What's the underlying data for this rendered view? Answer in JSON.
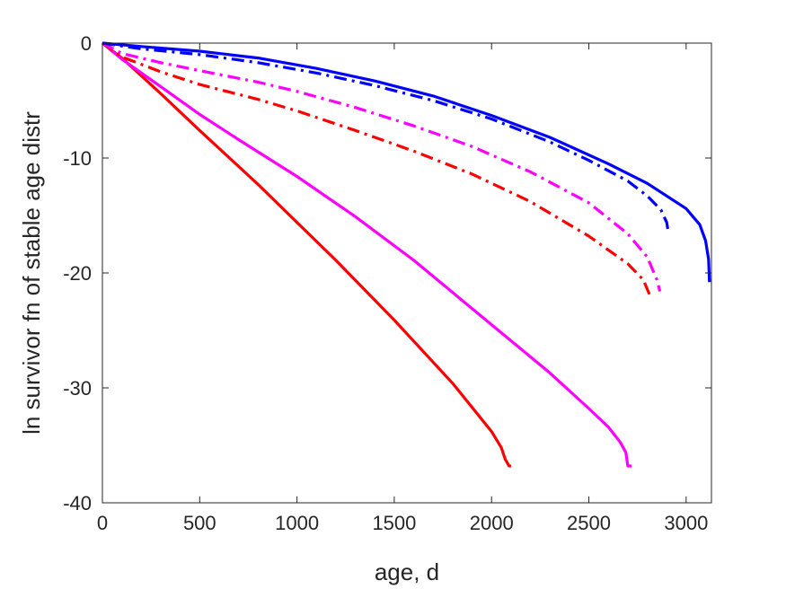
{
  "chart_data": {
    "type": "line",
    "xlabel": "age, d",
    "ylabel": "ln survivor fn of stable age distr",
    "xlim": [
      0,
      3130
    ],
    "ylim": [
      -40,
      0
    ],
    "xticks": [
      0,
      500,
      1000,
      1500,
      2000,
      2500,
      3000
    ],
    "yticks": [
      0,
      -10,
      -20,
      -30,
      -40
    ],
    "xtick_labels": [
      "0",
      "500",
      "1000",
      "1500",
      "2000",
      "2500",
      "3000"
    ],
    "ytick_labels": [
      "0",
      "-10",
      "-20",
      "-30",
      "-40"
    ],
    "grid": false,
    "series": [
      {
        "color": "#ff0000",
        "style": "solid",
        "points": [
          [
            0,
            0
          ],
          [
            100,
            -1.3
          ],
          [
            300,
            -4.4
          ],
          [
            500,
            -7.6
          ],
          [
            800,
            -12.3
          ],
          [
            1000,
            -15.6
          ],
          [
            1200,
            -18.9
          ],
          [
            1500,
            -24.1
          ],
          [
            1800,
            -29.6
          ],
          [
            2000,
            -33.8
          ],
          [
            2050,
            -35.2
          ],
          [
            2070,
            -36.2
          ],
          [
            2090,
            -36.8
          ],
          [
            2100,
            -36.8
          ]
        ]
      },
      {
        "color": "#ff00ff",
        "style": "solid",
        "points": [
          [
            0,
            0
          ],
          [
            100,
            -1.4
          ],
          [
            300,
            -3.8
          ],
          [
            500,
            -6.2
          ],
          [
            700,
            -8.4
          ],
          [
            1000,
            -11.6
          ],
          [
            1300,
            -15.1
          ],
          [
            1600,
            -18.9
          ],
          [
            2000,
            -24.5
          ],
          [
            2300,
            -28.7
          ],
          [
            2500,
            -31.8
          ],
          [
            2600,
            -33.4
          ],
          [
            2660,
            -34.7
          ],
          [
            2690,
            -35.6
          ],
          [
            2700,
            -36.8
          ],
          [
            2720,
            -36.8
          ]
        ]
      },
      {
        "color": "#ff0000",
        "style": "dashdot",
        "points": [
          [
            0,
            0
          ],
          [
            100,
            -1.2
          ],
          [
            300,
            -2.5
          ],
          [
            500,
            -3.6
          ],
          [
            800,
            -4.9
          ],
          [
            1000,
            -5.9
          ],
          [
            1300,
            -7.6
          ],
          [
            1600,
            -9.4
          ],
          [
            1900,
            -11.4
          ],
          [
            2200,
            -13.8
          ],
          [
            2500,
            -16.8
          ],
          [
            2700,
            -19.2
          ],
          [
            2780,
            -20.6
          ],
          [
            2820,
            -22.2
          ]
        ]
      },
      {
        "color": "#ff00ff",
        "style": "dashdot",
        "points": [
          [
            0,
            0
          ],
          [
            100,
            -0.9
          ],
          [
            300,
            -1.7
          ],
          [
            500,
            -2.4
          ],
          [
            800,
            -3.4
          ],
          [
            1000,
            -4.2
          ],
          [
            1300,
            -5.6
          ],
          [
            1600,
            -7.2
          ],
          [
            1900,
            -9.0
          ],
          [
            2200,
            -11.2
          ],
          [
            2500,
            -13.9
          ],
          [
            2700,
            -16.6
          ],
          [
            2800,
            -18.6
          ],
          [
            2850,
            -20.6
          ],
          [
            2865,
            -21.6
          ]
        ]
      },
      {
        "color": "#0000ff",
        "style": "dashdot",
        "points": [
          [
            0,
            0
          ],
          [
            200,
            -0.5
          ],
          [
            500,
            -1.0
          ],
          [
            800,
            -1.7
          ],
          [
            1100,
            -2.6
          ],
          [
            1400,
            -3.7
          ],
          [
            1700,
            -5.0
          ],
          [
            2000,
            -6.6
          ],
          [
            2300,
            -8.6
          ],
          [
            2500,
            -10.2
          ],
          [
            2700,
            -12.0
          ],
          [
            2800,
            -13.3
          ],
          [
            2870,
            -14.5
          ],
          [
            2900,
            -15.6
          ],
          [
            2910,
            -16.6
          ]
        ]
      },
      {
        "color": "#0000ff",
        "style": "solid",
        "points": [
          [
            0,
            0
          ],
          [
            200,
            -0.3
          ],
          [
            500,
            -0.7
          ],
          [
            800,
            -1.3
          ],
          [
            1100,
            -2.2
          ],
          [
            1400,
            -3.3
          ],
          [
            1700,
            -4.6
          ],
          [
            2000,
            -6.3
          ],
          [
            2300,
            -8.2
          ],
          [
            2600,
            -10.5
          ],
          [
            2800,
            -12.2
          ],
          [
            3000,
            -14.4
          ],
          [
            3070,
            -15.8
          ],
          [
            3100,
            -17.2
          ],
          [
            3115,
            -18.8
          ],
          [
            3120,
            -20.8
          ]
        ]
      }
    ]
  }
}
